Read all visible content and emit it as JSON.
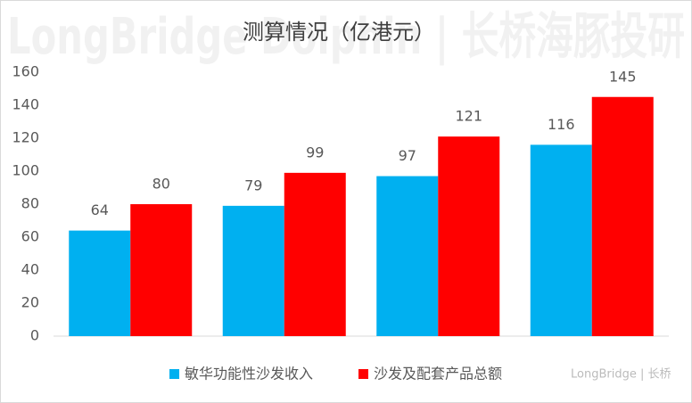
{
  "chart_data": {
    "type": "bar",
    "title": "测算情况（亿港元）",
    "watermark": "LongBridge Dolphin | 长桥海豚投研",
    "logo": "LongBridge | 长桥",
    "categories": [
      null,
      null,
      null,
      null
    ],
    "series": [
      {
        "name": "敏华功能性沙发收入",
        "color": "#00b0f0",
        "values": [
          64,
          79,
          97,
          116
        ]
      },
      {
        "name": "沙发及配套产品总额",
        "color": "#ff0000",
        "values": [
          80,
          99,
          121,
          145
        ]
      }
    ],
    "ylim": [
      0,
      160
    ],
    "yticks": [
      0,
      20,
      40,
      60,
      80,
      100,
      120,
      140,
      160
    ],
    "grid": false
  }
}
